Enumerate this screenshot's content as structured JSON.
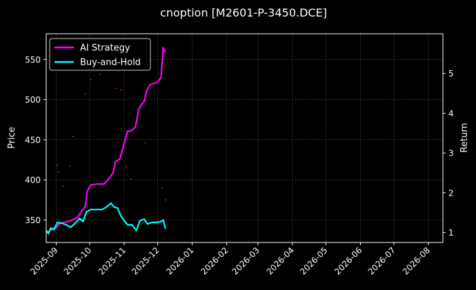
{
  "chart_data": {
    "type": "line",
    "title": "cnoption [M2601-P-3450.DCE]",
    "xlabel": "",
    "ylabel": "Price",
    "ylabel_right": "Return",
    "xlim": [
      "2025-08-23",
      "2026-08-14"
    ],
    "ylim": [
      322,
      582
    ],
    "ylim_right": [
      0.75,
      6.0
    ],
    "x_ticks": [
      "2025-09",
      "2025-10",
      "2025-11",
      "2025-12",
      "2026-01",
      "2026-02",
      "2026-03",
      "2026-04",
      "2026-05",
      "2026-06",
      "2026-07",
      "2026-08"
    ],
    "y_ticks": [
      350,
      400,
      450,
      500,
      550
    ],
    "y_ticks_right": [
      1,
      2,
      3,
      4,
      5
    ],
    "grid": true,
    "legend": "top-left",
    "series": [
      {
        "name": "AI Strategy",
        "color": "#ff00ff",
        "axis": "right",
        "points": [
          [
            "2025-08-23",
            1.0
          ],
          [
            "2025-08-26",
            1.03
          ],
          [
            "2025-08-29",
            1.1
          ],
          [
            "2025-09-01",
            1.12
          ],
          [
            "2025-09-04",
            1.22
          ],
          [
            "2025-09-08",
            1.26
          ],
          [
            "2025-09-12",
            1.28
          ],
          [
            "2025-09-16",
            1.33
          ],
          [
            "2025-09-20",
            1.38
          ],
          [
            "2025-09-24",
            1.55
          ],
          [
            "2025-09-27",
            1.65
          ],
          [
            "2025-09-29",
            2.05
          ],
          [
            "2025-10-02",
            2.2
          ],
          [
            "2025-10-08",
            2.22
          ],
          [
            "2025-10-14",
            2.22
          ],
          [
            "2025-10-18",
            2.35
          ],
          [
            "2025-10-22",
            2.5
          ],
          [
            "2025-10-24",
            2.78
          ],
          [
            "2025-10-28",
            2.85
          ],
          [
            "2025-11-01",
            3.25
          ],
          [
            "2025-11-04",
            3.55
          ],
          [
            "2025-11-07",
            3.55
          ],
          [
            "2025-11-11",
            3.65
          ],
          [
            "2025-11-14",
            4.1
          ],
          [
            "2025-11-16",
            4.2
          ],
          [
            "2025-11-19",
            4.3
          ],
          [
            "2025-11-21",
            4.55
          ],
          [
            "2025-11-24",
            4.72
          ],
          [
            "2025-11-28",
            4.75
          ],
          [
            "2025-12-01",
            4.78
          ],
          [
            "2025-12-04",
            4.9
          ],
          [
            "2025-12-06",
            5.65
          ],
          [
            "2025-12-08",
            5.52
          ]
        ]
      },
      {
        "name": "Buy-and-Hold",
        "color": "#00ffff",
        "axis": "left",
        "points": [
          [
            "2025-08-23",
            337
          ],
          [
            "2025-08-25",
            333
          ],
          [
            "2025-08-27",
            340
          ],
          [
            "2025-08-30",
            338
          ],
          [
            "2025-09-02",
            347
          ],
          [
            "2025-09-06",
            346
          ],
          [
            "2025-09-10",
            344
          ],
          [
            "2025-09-14",
            341
          ],
          [
            "2025-09-18",
            346
          ],
          [
            "2025-09-22",
            352
          ],
          [
            "2025-09-25",
            348
          ],
          [
            "2025-09-28",
            360
          ],
          [
            "2025-10-02",
            363
          ],
          [
            "2025-10-08",
            363
          ],
          [
            "2025-10-12",
            363
          ],
          [
            "2025-10-16",
            366
          ],
          [
            "2025-10-20",
            371
          ],
          [
            "2025-10-23",
            366
          ],
          [
            "2025-10-26",
            365
          ],
          [
            "2025-10-29",
            355
          ],
          [
            "2025-11-01",
            349
          ],
          [
            "2025-11-04",
            344
          ],
          [
            "2025-11-08",
            344
          ],
          [
            "2025-11-12",
            337
          ],
          [
            "2025-11-15",
            349
          ],
          [
            "2025-11-19",
            351
          ],
          [
            "2025-11-22",
            345
          ],
          [
            "2025-11-26",
            347
          ],
          [
            "2025-11-30",
            347
          ],
          [
            "2025-12-04",
            348
          ],
          [
            "2025-12-06",
            350
          ],
          [
            "2025-12-08",
            339
          ]
        ]
      }
    ],
    "scatter_points": {
      "color": "#ff2a4d",
      "axis": "left",
      "points": [
        [
          "2025-09-02",
          418
        ],
        [
          "2025-09-03",
          410
        ],
        [
          "2025-09-07",
          392
        ],
        [
          "2025-09-13",
          417
        ],
        [
          "2025-09-16",
          454
        ],
        [
          "2025-09-27",
          507
        ],
        [
          "2025-10-02",
          525
        ],
        [
          "2025-10-10",
          532
        ],
        [
          "2025-10-25",
          514
        ],
        [
          "2025-10-29",
          512
        ],
        [
          "2025-11-03",
          416
        ],
        [
          "2025-11-07",
          401
        ],
        [
          "2025-11-20",
          446
        ],
        [
          "2025-12-05",
          390
        ],
        [
          "2025-12-08",
          375
        ]
      ]
    }
  }
}
